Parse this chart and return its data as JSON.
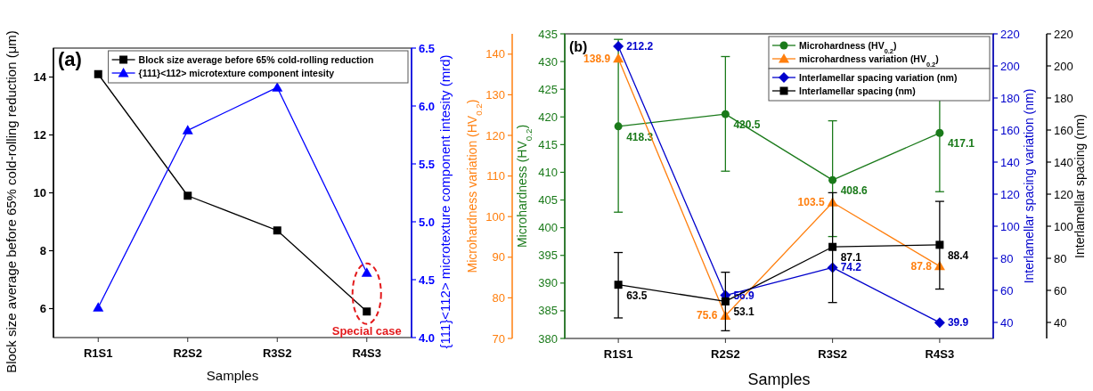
{
  "chart_data": [
    {
      "type": "line",
      "categories": [
        "R1S1",
        "R2S2",
        "R3S2",
        "R4S3"
      ],
      "xlabel": "Samples",
      "ylabel": "Block size average before 65% cold-rolling reduction (μm)",
      "y2label": "{111}<112> microtexture component intesity (mrd)",
      "ylim": [
        5,
        15
      ],
      "yticks": [
        6,
        8,
        10,
        12,
        14
      ],
      "y2lim": [
        4,
        6.5
      ],
      "y2ticks": [
        {
          "value": 4,
          "label": "4.0"
        },
        4.5,
        {
          "value": 5,
          "label": "5.0"
        },
        5.5,
        {
          "value": 6,
          "label": "6.0"
        },
        6.5
      ],
      "legend": "top right",
      "annotations": [
        "(a)",
        {
          "text": "Special case",
          "x": "R4S3",
          "y": 5.9
        }
      ],
      "series": [
        {
          "name": "Block size average before 65% cold-rolling reduction",
          "color": "#000000",
          "marker": "square",
          "values": [
            14.1,
            9.9,
            8.7,
            5.9
          ]
        },
        {
          "name": "{111}<112> microtexture component intesity",
          "color": "#0000ff",
          "marker": "triangle",
          "axis": "y2",
          "values": [
            4.26,
            5.79,
            6.16,
            4.56
          ]
        }
      ]
    },
    {
      "type": "line",
      "categories": [
        "R1S1",
        "R2S2",
        "R3S2",
        "R4S3"
      ],
      "xlabel": "Samples",
      "ylabel": "Microhardness (HV$_{0.2}$)",
      "y2label": "Microhardness variation (HV$_{0.2}$)",
      "ylim": [
        380,
        435
      ],
      "yticks": [
        380,
        385,
        390,
        395,
        400,
        405,
        410,
        415,
        420,
        425,
        430,
        435
      ],
      "y2lim": [
        70,
        145
      ],
      "y2ticks": [
        70,
        80,
        90,
        100,
        110,
        120,
        130,
        140
      ],
      "legend": "top right",
      "data_labels": true,
      "annotations": [
        "(b)"
      ],
      "series": [
        {
          "name": "Microhardness (HV$_{0.2}$)",
          "color": "#1a7a1a",
          "marker": "circle",
          "values": [
            418.3,
            420.5,
            408.6,
            417.1
          ],
          "errors": [
            [
              402.8,
              434
            ],
            [
              410.2,
              430.9
            ],
            [
              398.4,
              419.3
            ],
            [
              406.5,
              427.9
            ]
          ]
        },
        {
          "name": "microhardness variation (HV$_{0.2}$)",
          "color": "#ff7f0e",
          "marker": "triangle",
          "axis": "y2",
          "values": [
            138.9,
            75.6,
            103.5,
            87.8
          ]
        }
      ]
    },
    {
      "type": "line",
      "categories": [
        null,
        null,
        null,
        null
      ],
      "ylabel": "Interlamellar spacing variation (nm)",
      "y2label": "Interlamellar spacing (nm)",
      "ylim": [
        30,
        220
      ],
      "yticks": [
        40,
        60,
        80,
        100,
        120,
        140,
        160,
        180,
        200,
        220
      ],
      "y2lim": [
        30,
        220
      ],
      "y2ticks": [
        40,
        60,
        80,
        100,
        120,
        140,
        160,
        180,
        200,
        220
      ],
      "legend": "top right",
      "data_labels": true,
      "series": [
        {
          "name": "Interlamellar spacing variation (nm)",
          "color": "#0000cc",
          "marker": "diamond",
          "values": [
            212.2,
            56.9,
            74.2,
            39.9
          ]
        },
        {
          "name": "Interlamellar spacing (nm)",
          "color": "#000000",
          "marker": "square",
          "axis": "y2",
          "values": [
            63.5,
            53.1,
            87.1,
            88.4
          ],
          "errors": [
            [
              42.8,
              83.6
            ],
            [
              34.8,
              71.3
            ],
            [
              52.4,
              120.9
            ],
            [
              60.8,
              115.5
            ]
          ]
        }
      ]
    }
  ]
}
